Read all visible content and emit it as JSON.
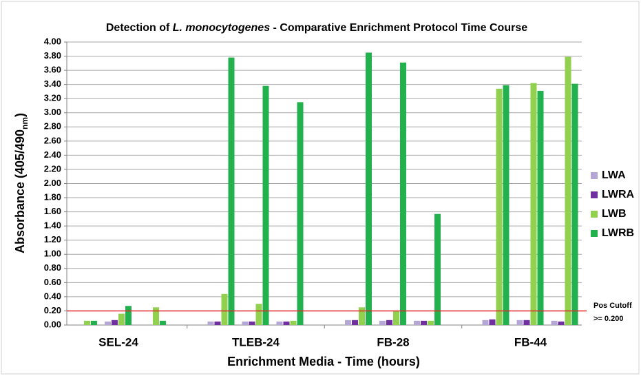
{
  "chart_data": {
    "type": "bar",
    "title_parts": [
      "Detection of ",
      "L. monocytogenes",
      " - Comparative Enrichment Protocol Time Course"
    ],
    "y_label_parts": [
      "Absorbance (405/490",
      "nm",
      ")"
    ],
    "x_label": "Enrichment Media - Time (hours)",
    "categories": [
      null,
      "SEL-24",
      null,
      null,
      "TLEB-24",
      null,
      null,
      "FB-28",
      null,
      null,
      "FB-44",
      null
    ],
    "series": [
      {
        "name": "LWA",
        "color": "#b4a7d6",
        "values": [
          null,
          0.05,
          null,
          0.05,
          0.05,
          0.05,
          0.07,
          0.06,
          0.06,
          0.07,
          0.07,
          0.06
        ]
      },
      {
        "name": "LWRA",
        "color": "#7030a0",
        "values": [
          null,
          0.07,
          null,
          0.05,
          0.05,
          0.05,
          0.07,
          0.07,
          0.06,
          0.08,
          0.07,
          0.05
        ]
      },
      {
        "name": "LWB",
        "color": "#92d050",
        "values": [
          0.06,
          0.16,
          0.25,
          0.44,
          0.3,
          0.06,
          0.25,
          0.2,
          0.06,
          3.34,
          3.42,
          3.79
        ]
      },
      {
        "name": "LWRB",
        "color": "#22b14c",
        "values": [
          0.06,
          0.27,
          0.06,
          3.78,
          3.38,
          3.15,
          3.85,
          3.71,
          1.57,
          3.39,
          3.31,
          3.41
        ]
      }
    ],
    "ylim": [
      0,
      4
    ],
    "yticks": [
      {
        "value": 0,
        "label": "0.00"
      },
      {
        "value": 0.2,
        "label": "0.20"
      },
      {
        "value": 0.4,
        "label": "0.40"
      },
      {
        "value": 0.6,
        "label": "0.60"
      },
      {
        "value": 0.8,
        "label": "0.80"
      },
      {
        "value": 1,
        "label": "1.00"
      },
      {
        "value": 1.2,
        "label": "1.20"
      },
      {
        "value": 1.4,
        "label": "1.40"
      },
      {
        "value": 1.6,
        "label": "1.60"
      },
      {
        "value": 1.8,
        "label": "1.80"
      },
      {
        "value": 2,
        "label": "2.00"
      },
      {
        "value": 2.2,
        "label": "2.20"
      },
      {
        "value": 2.4,
        "label": "2.40"
      },
      {
        "value": 2.6,
        "label": "2.60"
      },
      {
        "value": 2.8,
        "label": "2.80"
      },
      {
        "value": 3,
        "label": "3.00"
      },
      {
        "value": 3.2,
        "label": "3.20"
      },
      {
        "value": 3.4,
        "label": "3.40"
      },
      {
        "value": 3.6,
        "label": "3.60"
      },
      {
        "value": 3.8,
        "label": "3.80"
      },
      {
        "value": 4,
        "label": "4.00"
      }
    ],
    "grid": true,
    "legend": "right",
    "cutoff": {
      "value": 0.2,
      "color": "#e3262a",
      "lines": [
        "Pos Cutoff",
        ">= 0.200"
      ]
    }
  }
}
